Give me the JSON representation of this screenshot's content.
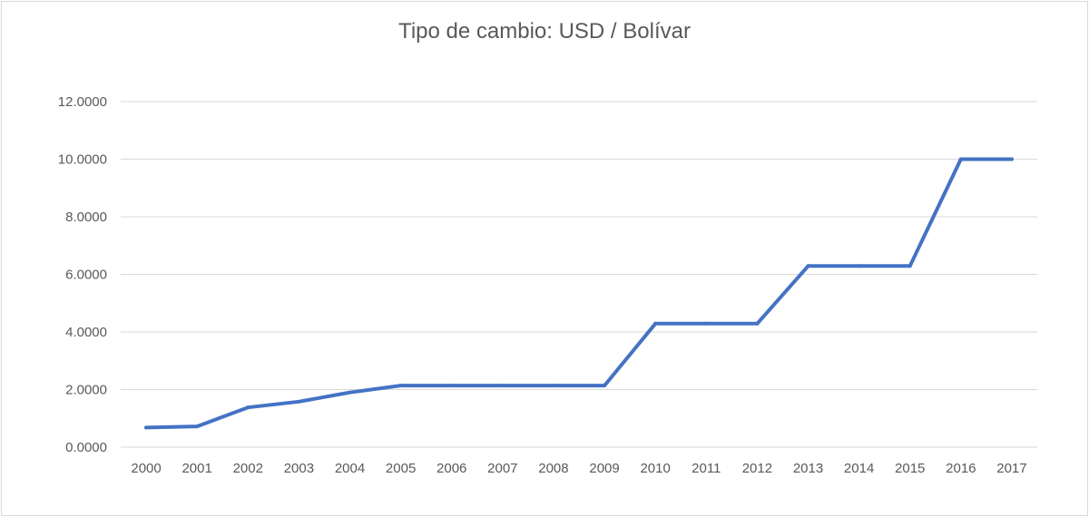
{
  "chart_data": {
    "type": "line",
    "title": "Tipo de cambio: USD / Bolívar",
    "xlabel": "",
    "ylabel": "",
    "x": [
      "2000",
      "2001",
      "2002",
      "2003",
      "2004",
      "2005",
      "2006",
      "2007",
      "2008",
      "2009",
      "2010",
      "2011",
      "2012",
      "2013",
      "2014",
      "2015",
      "2016",
      "2017"
    ],
    "series": [
      {
        "values": [
          0.68,
          0.72,
          1.38,
          1.58,
          1.9,
          2.14,
          2.14,
          2.14,
          2.14,
          2.14,
          4.29,
          4.29,
          4.29,
          6.29,
          6.29,
          6.29,
          10.0,
          10.0
        ],
        "color": "#4472c4"
      }
    ],
    "ylim": [
      0,
      12
    ],
    "yticks": [
      "0.0000",
      "2.0000",
      "4.0000",
      "6.0000",
      "8.0000",
      "10.0000",
      "12.0000"
    ],
    "grid": true,
    "legend": "none"
  }
}
